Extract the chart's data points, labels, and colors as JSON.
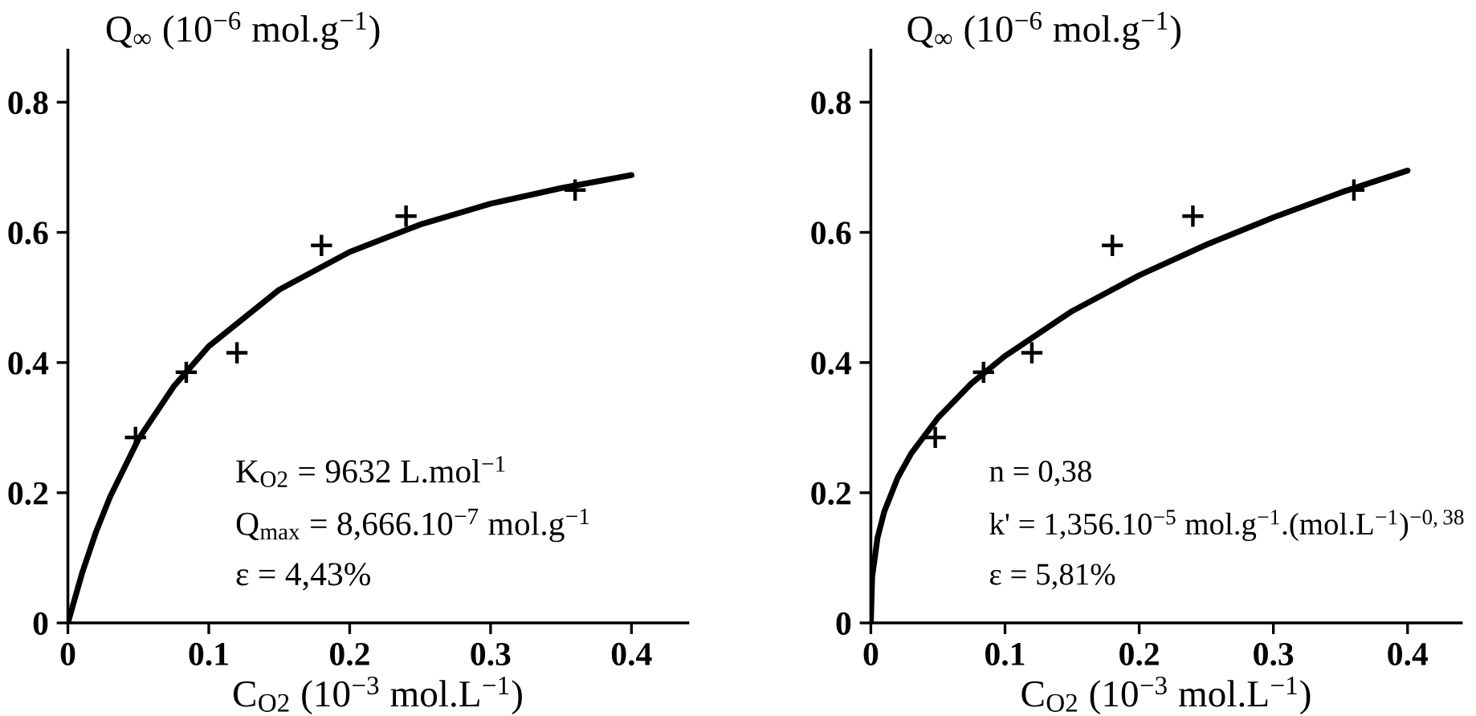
{
  "chart_data": [
    {
      "type": "scatter",
      "ylabel": "Q$_{∞}$ (10$^{−6}$ mol.g$^{−1}$)",
      "xlabel": "C$_{O2}$ (10$^{−3}$ mol.L$^{−1}$)",
      "xlim": [
        0,
        0.44
      ],
      "ylim": [
        0,
        0.88
      ],
      "xticks": [
        0,
        0.1,
        0.2,
        0.3,
        0.4
      ],
      "yticks": [
        0,
        0.2,
        0.4,
        0.6,
        0.8
      ],
      "grid": false,
      "legend": false,
      "annotations": [
        "K$_{O2}$ = 9632 L.mol$^{−1}$",
        "Q$_{max}$ = 8,666.10$^{−7}$ mol.g$^{−1}$",
        "ε = 4,43%"
      ],
      "series": [
        {
          "color": "#000000",
          "marker": "cross",
          "x": [
            0.048,
            0.084,
            0.12,
            0.18,
            0.24,
            0.36
          ],
          "values": [
            0.285,
            0.385,
            0.415,
            0.58,
            0.625,
            0.665
          ]
        },
        {
          "type": "line",
          "color": "#000000",
          "marker": "none",
          "line_style": "solid",
          "x": [
            0,
            0.01,
            0.02,
            0.03,
            0.05,
            0.075,
            0.1,
            0.15,
            0.2,
            0.25,
            0.3,
            0.35,
            0.4
          ],
          "values": [
            0,
            0.076,
            0.14,
            0.194,
            0.282,
            0.363,
            0.425,
            0.512,
            0.57,
            0.612,
            0.644,
            0.668,
            0.688
          ]
        }
      ]
    },
    {
      "type": "scatter",
      "ylabel": "Q$_{∞}$ (10$^{−6}$ mol.g$^{−1}$)",
      "xlabel": "C$_{O2}$ (10$^{−3}$ mol.L$^{−1}$)",
      "xlim": [
        0,
        0.44
      ],
      "ylim": [
        0,
        0.88
      ],
      "xticks": [
        0,
        0.1,
        0.2,
        0.3,
        0.4
      ],
      "yticks": [
        0,
        0.2,
        0.4,
        0.6,
        0.8
      ],
      "grid": false,
      "legend": false,
      "annotations": [
        "n = 0,38",
        "k' = 1,356.10$^{−5}$ mol.g$^{−1}$.(mol.L$^{−1}$)$^{−0,38}$",
        "ε = 5,81%"
      ],
      "series": [
        {
          "color": "#000000",
          "marker": "cross",
          "x": [
            0.048,
            0.084,
            0.12,
            0.18,
            0.24,
            0.36
          ],
          "values": [
            0.285,
            0.385,
            0.415,
            0.58,
            0.625,
            0.665
          ]
        },
        {
          "type": "line",
          "color": "#000000",
          "marker": "none",
          "line_style": "solid",
          "x": [
            0,
            0.001,
            0.005,
            0.01,
            0.02,
            0.03,
            0.05,
            0.075,
            0.1,
            0.15,
            0.2,
            0.25,
            0.3,
            0.35,
            0.4
          ],
          "values": [
            0,
            0.071,
            0.131,
            0.171,
            0.223,
            0.26,
            0.315,
            0.368,
            0.41,
            0.479,
            0.534,
            0.581,
            0.623,
            0.661,
            0.695
          ]
        }
      ]
    }
  ]
}
